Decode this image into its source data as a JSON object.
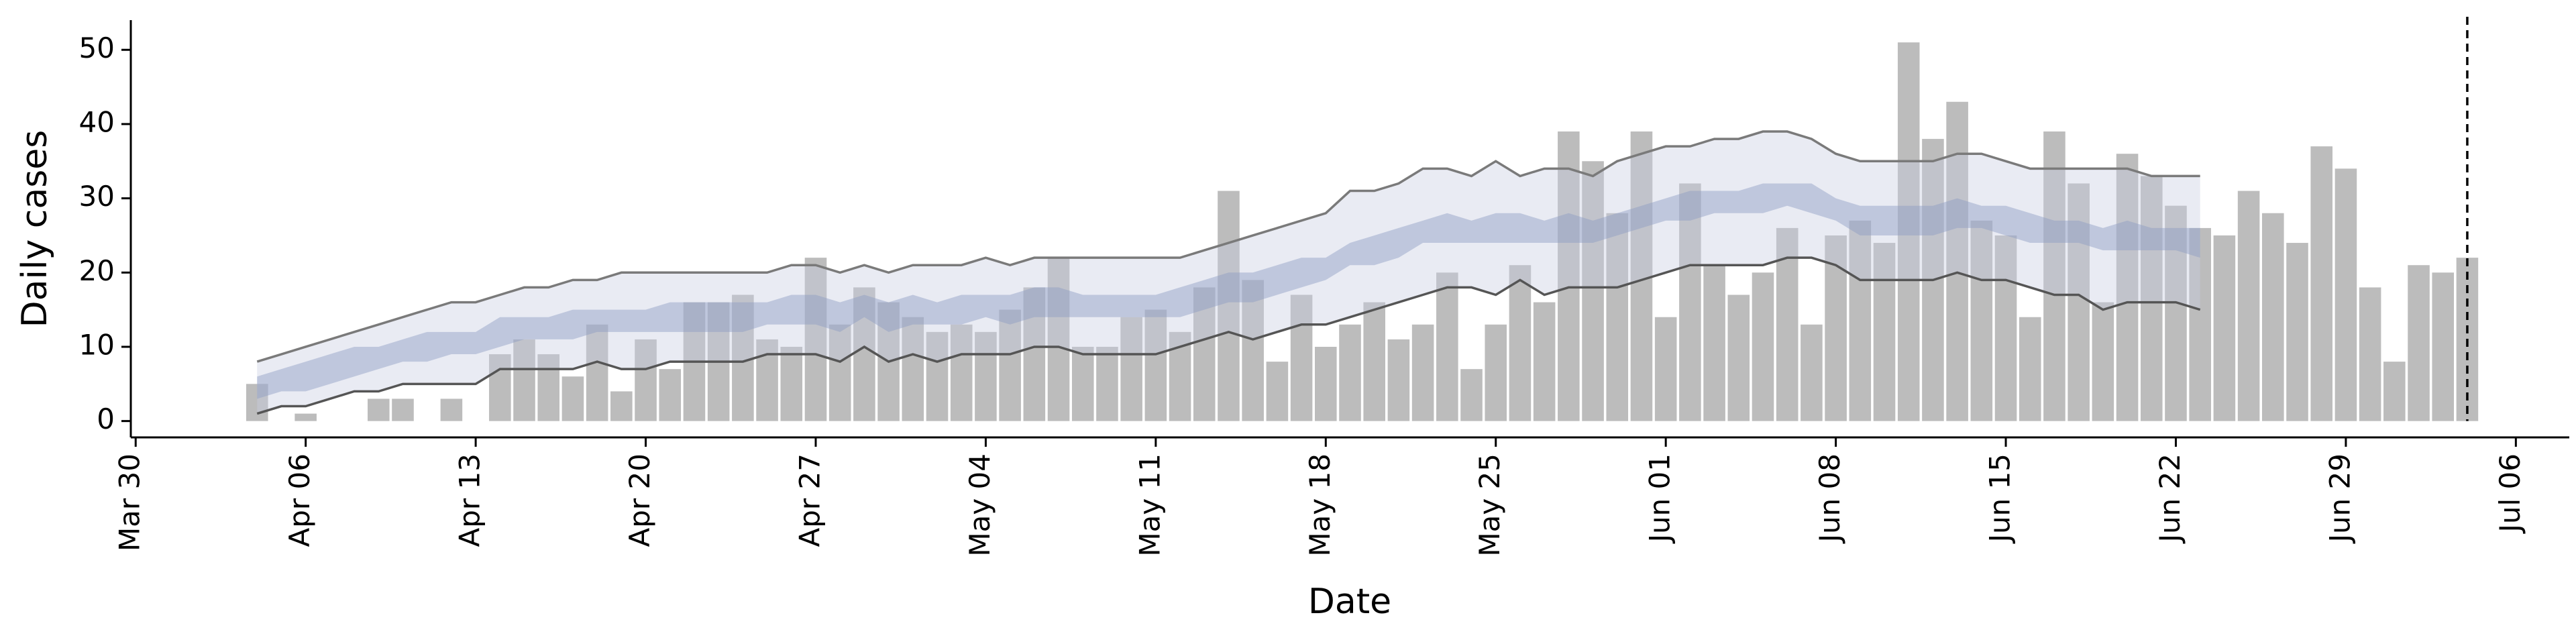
{
  "chart_data": {
    "type": "bar",
    "ylabel": "Daily cases",
    "xlabel": "Date",
    "x": [
      5,
      6,
      7,
      8,
      9,
      10,
      11,
      12,
      13,
      14,
      15,
      16,
      17,
      18,
      19,
      20,
      21,
      22,
      23,
      24,
      25,
      26,
      27,
      28,
      29,
      30,
      31,
      32,
      33,
      34,
      35,
      36,
      37,
      38,
      39,
      40,
      41,
      42,
      43,
      44,
      45,
      46,
      47,
      48,
      49,
      50,
      51,
      52,
      53,
      54,
      55,
      56,
      57,
      58,
      59,
      60,
      61,
      62,
      63,
      64,
      65,
      66,
      67,
      68,
      69,
      70,
      71,
      72,
      73,
      74,
      75,
      76,
      77,
      78,
      79,
      80,
      81,
      82,
      83,
      84,
      85,
      86,
      87,
      88,
      89,
      90,
      91,
      92,
      93,
      94,
      95,
      96
    ],
    "values": [
      5,
      0,
      1,
      0,
      0,
      3,
      3,
      0,
      3,
      0,
      9,
      11,
      9,
      6,
      13,
      4,
      11,
      7,
      16,
      16,
      17,
      11,
      10,
      22,
      13,
      18,
      16,
      14,
      12,
      13,
      12,
      15,
      18,
      22,
      10,
      10,
      14,
      15,
      12,
      18,
      31,
      19,
      8,
      17,
      10,
      13,
      16,
      11,
      13,
      20,
      7,
      13,
      21,
      16,
      39,
      35,
      28,
      39,
      14,
      32,
      21,
      17,
      20,
      26,
      13,
      25,
      27,
      24,
      51,
      38,
      43,
      27,
      25,
      14,
      39,
      32,
      16,
      36,
      33,
      29,
      26,
      25,
      31,
      28,
      24,
      37,
      34,
      18,
      8,
      21,
      20,
      22
    ],
    "color": "#bcbcbc",
    "band_x": [
      5,
      6,
      7,
      8,
      9,
      10,
      11,
      12,
      13,
      14,
      15,
      16,
      17,
      18,
      19,
      20,
      21,
      22,
      23,
      24,
      25,
      26,
      27,
      28,
      29,
      30,
      31,
      32,
      33,
      34,
      35,
      36,
      37,
      38,
      39,
      40,
      41,
      42,
      43,
      44,
      45,
      46,
      47,
      48,
      49,
      50,
      51,
      52,
      53,
      54,
      55,
      56,
      57,
      58,
      59,
      60,
      61,
      62,
      63,
      64,
      65,
      66,
      67,
      68,
      69,
      70,
      71,
      72,
      73,
      74,
      75,
      76,
      77,
      78,
      79,
      80,
      81,
      82,
      83,
      84,
      85
    ],
    "lines": [
      {
        "color": "#7a7a7a",
        "values": [
          8,
          9,
          10,
          11,
          12,
          13,
          14,
          15,
          16,
          16,
          17,
          18,
          18,
          19,
          19,
          20,
          20,
          20,
          20,
          20,
          20,
          20,
          21,
          21,
          20,
          21,
          20,
          21,
          21,
          21,
          22,
          21,
          22,
          22,
          22,
          22,
          22,
          22,
          22,
          23,
          24,
          25,
          26,
          27,
          28,
          31,
          31,
          32,
          34,
          34,
          33,
          35,
          33,
          34,
          34,
          33,
          35,
          36,
          37,
          37,
          38,
          38,
          39,
          39,
          38,
          36,
          35,
          35,
          35,
          35,
          36,
          36,
          35,
          34,
          34,
          34,
          34,
          34,
          33,
          33,
          33
        ]
      },
      {
        "color": "#555555",
        "values": [
          1,
          2,
          2,
          3,
          4,
          4,
          5,
          5,
          5,
          5,
          7,
          7,
          7,
          7,
          8,
          7,
          7,
          8,
          8,
          8,
          8,
          9,
          9,
          9,
          8,
          10,
          8,
          9,
          8,
          9,
          9,
          9,
          10,
          10,
          9,
          9,
          9,
          9,
          10,
          11,
          12,
          11,
          12,
          13,
          13,
          14,
          15,
          16,
          17,
          18,
          18,
          17,
          19,
          17,
          18,
          18,
          18,
          19,
          20,
          21,
          21,
          21,
          21,
          22,
          22,
          21,
          19,
          19,
          19,
          19,
          20,
          19,
          19,
          18,
          17,
          17,
          15,
          16,
          16,
          16,
          15
        ]
      }
    ],
    "envelope_color": "rgba(200,205,225,0.4)",
    "bands": [
      {
        "color": "rgba(140,155,195,0.45)",
        "low": [
          3,
          4,
          4,
          5,
          6,
          7,
          8,
          8,
          9,
          9,
          10,
          11,
          11,
          11,
          12,
          12,
          12,
          12,
          12,
          12,
          12,
          13,
          13,
          13,
          12,
          14,
          12,
          13,
          13,
          13,
          14,
          13,
          14,
          14,
          14,
          14,
          14,
          14,
          14,
          15,
          16,
          16,
          17,
          18,
          19,
          21,
          21,
          22,
          24,
          24,
          24,
          24,
          24,
          24,
          24,
          24,
          25,
          26,
          27,
          27,
          28,
          28,
          28,
          29,
          28,
          27,
          25,
          25,
          25,
          25,
          26,
          26,
          25,
          24,
          24,
          24,
          23,
          23,
          23,
          23,
          22
        ],
        "high": [
          6,
          7,
          8,
          9,
          10,
          10,
          11,
          12,
          12,
          12,
          14,
          14,
          14,
          15,
          15,
          15,
          15,
          16,
          16,
          16,
          16,
          16,
          17,
          17,
          16,
          17,
          16,
          17,
          16,
          17,
          17,
          17,
          18,
          18,
          17,
          17,
          17,
          17,
          18,
          19,
          20,
          20,
          21,
          22,
          22,
          24,
          25,
          26,
          27,
          28,
          27,
          28,
          28,
          27,
          28,
          27,
          28,
          29,
          30,
          31,
          31,
          31,
          32,
          32,
          32,
          30,
          29,
          29,
          29,
          29,
          30,
          29,
          29,
          28,
          27,
          27,
          26,
          27,
          26,
          26,
          26
        ]
      }
    ],
    "vline_x": 96,
    "xlim": [
      -0.2,
      100.2
    ],
    "ylim": [
      -2.2,
      54
    ],
    "yticks": [
      0,
      10,
      20,
      30,
      40,
      50
    ],
    "xticks": [
      {
        "value": 0,
        "label": "Mar 30"
      },
      {
        "value": 7,
        "label": "Apr 06"
      },
      {
        "value": 14,
        "label": "Apr 13"
      },
      {
        "value": 21,
        "label": "Apr 20"
      },
      {
        "value": 28,
        "label": "Apr 27"
      },
      {
        "value": 35,
        "label": "May 04"
      },
      {
        "value": 42,
        "label": "May 11"
      },
      {
        "value": 49,
        "label": "May 18"
      },
      {
        "value": 56,
        "label": "May 25"
      },
      {
        "value": 63,
        "label": "Jun 01"
      },
      {
        "value": 70,
        "label": "Jun 08"
      },
      {
        "value": 77,
        "label": "Jun 15"
      },
      {
        "value": 84,
        "label": "Jun 22"
      },
      {
        "value": 91,
        "label": "Jun 29"
      },
      {
        "value": 98,
        "label": "Jul 06"
      }
    ]
  }
}
